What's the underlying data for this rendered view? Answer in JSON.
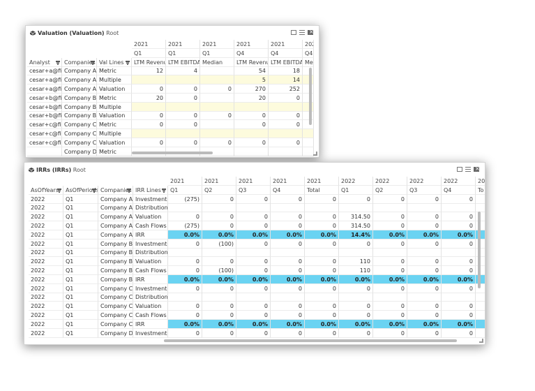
{
  "panel1": {
    "title_bold": "Valuation (Valuation)",
    "title_root": "Root",
    "col_years": [
      "2021",
      "2021",
      "2021",
      "2021",
      "2021",
      "202"
    ],
    "col_periods": [
      "Q1",
      "Q1",
      "Q1",
      "Q4",
      "Q4",
      "Q4"
    ],
    "col_lines": [
      "LTM Revenue",
      "LTM EBITDA",
      "Median",
      "LTM Revenue",
      "LTM EBITDA",
      "Me"
    ],
    "row_headers": [
      "Analyst",
      "Companies",
      "Val Lines"
    ],
    "rows": [
      {
        "analyst": "cesar+a@finica",
        "company": "Company A",
        "line": "Metric",
        "vals": [
          "12",
          "4",
          "",
          "54",
          "18",
          ""
        ],
        "yellow": false
      },
      {
        "analyst": "cesar+a@finica",
        "company": "Company A",
        "line": "Multiple",
        "vals": [
          "",
          "",
          "",
          "5",
          "14",
          ""
        ],
        "yellow": true
      },
      {
        "analyst": "cesar+a@finica",
        "company": "Company A",
        "line": "Valuation",
        "vals": [
          "0",
          "0",
          "0",
          "270",
          "252",
          ""
        ],
        "yellow": false
      },
      {
        "analyst": "cesar+b@finica",
        "company": "Company B",
        "line": "Metric",
        "vals": [
          "20",
          "0",
          "",
          "20",
          "0",
          ""
        ],
        "yellow": false
      },
      {
        "analyst": "cesar+b@finica",
        "company": "Company B",
        "line": "Multiple",
        "vals": [
          "",
          "",
          "",
          "",
          "",
          ""
        ],
        "yellow": true
      },
      {
        "analyst": "cesar+b@finica",
        "company": "Company B",
        "line": "Valuation",
        "vals": [
          "0",
          "0",
          "0",
          "0",
          "0",
          ""
        ],
        "yellow": false
      },
      {
        "analyst": "cesar+c@finica",
        "company": "Company C",
        "line": "Metric",
        "vals": [
          "0",
          "0",
          "",
          "0",
          "0",
          ""
        ],
        "yellow": false
      },
      {
        "analyst": "cesar+c@finica",
        "company": "Company C",
        "line": "Multiple",
        "vals": [
          "",
          "",
          "",
          "",
          "",
          ""
        ],
        "yellow": true
      },
      {
        "analyst": "cesar+c@finica",
        "company": "Company C",
        "line": "Valuation",
        "vals": [
          "0",
          "0",
          "0",
          "0",
          "0",
          ""
        ],
        "yellow": false
      },
      {
        "analyst": "",
        "company": "Company D",
        "line": "Metric",
        "vals": [
          "",
          "",
          "",
          "",
          "",
          ""
        ],
        "yellow": false
      }
    ]
  },
  "panel2": {
    "title_bold": "IRRs (IRRs)",
    "title_root": "Root",
    "col_years": [
      "2021",
      "2021",
      "2021",
      "2021",
      "2021",
      "2022",
      "2022",
      "2022",
      "2022",
      "20"
    ],
    "col_periods": [
      "Q1",
      "Q2",
      "Q3",
      "Q4",
      "Total",
      "Q1",
      "Q2",
      "Q3",
      "Q4",
      "To"
    ],
    "row_headers": [
      "AsOfYears",
      "AsOfPeriods",
      "Companies",
      "IRR Lines"
    ],
    "rows": [
      {
        "year": "2022",
        "period": "Q1",
        "company": "Company A",
        "line": "Investments",
        "vals": [
          "(275)",
          "0",
          "0",
          "0",
          "0",
          "0",
          "0",
          "0",
          "0",
          ""
        ],
        "irr": false
      },
      {
        "year": "2022",
        "period": "Q1",
        "company": "Company A",
        "line": "Distributions",
        "vals": [
          "",
          "",
          "",
          "",
          "",
          "",
          "",
          "",
          "",
          ""
        ],
        "irr": false
      },
      {
        "year": "2022",
        "period": "Q1",
        "company": "Company A",
        "line": "Valuation",
        "vals": [
          "0",
          "0",
          "0",
          "0",
          "0",
          "314.50",
          "0",
          "0",
          "0",
          ""
        ],
        "irr": false
      },
      {
        "year": "2022",
        "period": "Q1",
        "company": "Company A",
        "line": "Cash Flows",
        "vals": [
          "(275)",
          "0",
          "0",
          "0",
          "0",
          "314.50",
          "0",
          "0",
          "0",
          ""
        ],
        "irr": false
      },
      {
        "year": "2022",
        "period": "Q1",
        "company": "Company A",
        "line": "IRR",
        "vals": [
          "0.0%",
          "0.0%",
          "0.0%",
          "0.0%",
          "0.0%",
          "14.4%",
          "0.0%",
          "0.0%",
          "0.0%",
          ""
        ],
        "irr": true
      },
      {
        "year": "2022",
        "period": "Q1",
        "company": "Company B",
        "line": "Investments",
        "vals": [
          "0",
          "(100)",
          "0",
          "0",
          "0",
          "0",
          "0",
          "0",
          "0",
          ""
        ],
        "irr": false
      },
      {
        "year": "2022",
        "period": "Q1",
        "company": "Company B",
        "line": "Distributions",
        "vals": [
          "",
          "",
          "",
          "",
          "",
          "",
          "",
          "",
          "",
          ""
        ],
        "irr": false
      },
      {
        "year": "2022",
        "period": "Q1",
        "company": "Company B",
        "line": "Valuation",
        "vals": [
          "0",
          "0",
          "0",
          "0",
          "0",
          "110",
          "0",
          "0",
          "0",
          ""
        ],
        "irr": false
      },
      {
        "year": "2022",
        "period": "Q1",
        "company": "Company B",
        "line": "Cash Flows",
        "vals": [
          "0",
          "(100)",
          "0",
          "0",
          "0",
          "110",
          "0",
          "0",
          "0",
          ""
        ],
        "irr": false
      },
      {
        "year": "2022",
        "period": "Q1",
        "company": "Company B",
        "line": "IRR",
        "vals": [
          "0.0%",
          "0.0%",
          "0.0%",
          "0.0%",
          "0.0%",
          "0.0%",
          "0.0%",
          "0.0%",
          "0.0%",
          ""
        ],
        "irr": true
      },
      {
        "year": "2022",
        "period": "Q1",
        "company": "Company C",
        "line": "Investments",
        "vals": [
          "0",
          "0",
          "0",
          "0",
          "0",
          "0",
          "0",
          "0",
          "0",
          ""
        ],
        "irr": false
      },
      {
        "year": "2022",
        "period": "Q1",
        "company": "Company C",
        "line": "Distributions",
        "vals": [
          "",
          "",
          "",
          "",
          "",
          "",
          "",
          "",
          "",
          ""
        ],
        "irr": false
      },
      {
        "year": "2022",
        "period": "Q1",
        "company": "Company C",
        "line": "Valuation",
        "vals": [
          "0",
          "0",
          "0",
          "0",
          "0",
          "0",
          "0",
          "0",
          "0",
          ""
        ],
        "irr": false
      },
      {
        "year": "2022",
        "period": "Q1",
        "company": "Company C",
        "line": "Cash Flows",
        "vals": [
          "0",
          "0",
          "0",
          "0",
          "0",
          "0",
          "0",
          "0",
          "0",
          ""
        ],
        "irr": false
      },
      {
        "year": "2022",
        "period": "Q1",
        "company": "Company C",
        "line": "IRR",
        "vals": [
          "0.0%",
          "0.0%",
          "0.0%",
          "0.0%",
          "0.0%",
          "0.0%",
          "0.0%",
          "0.0%",
          "0.0%",
          ""
        ],
        "irr": true
      },
      {
        "year": "2022",
        "period": "Q1",
        "company": "Company D",
        "line": "Investments",
        "vals": [
          "0",
          "0",
          "0",
          "0",
          "0",
          "0",
          "0",
          "0",
          "0",
          ""
        ],
        "irr": false
      }
    ]
  },
  "colors": {
    "irr_row": "#6ad3f2",
    "input_row": "#fdfbdd"
  }
}
